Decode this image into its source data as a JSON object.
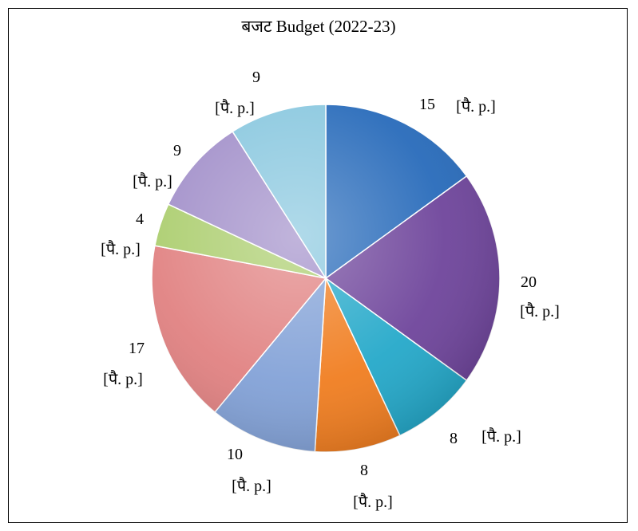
{
  "chart_data": {
    "type": "pie",
    "title": "बजट Budget  (2022-23)",
    "unit_label": "[पै. p.]",
    "values": [
      15,
      20,
      8,
      8,
      10,
      17,
      4,
      9,
      9
    ],
    "colors": [
      "#2166b8",
      "#6a3f98",
      "#1ea6c8",
      "#f07a1a",
      "#7f9fd6",
      "#e07e7e",
      "#a9cc6a",
      "#9f8cc8",
      "#86c6de"
    ],
    "legend": "none",
    "start": "top, clockwise"
  }
}
